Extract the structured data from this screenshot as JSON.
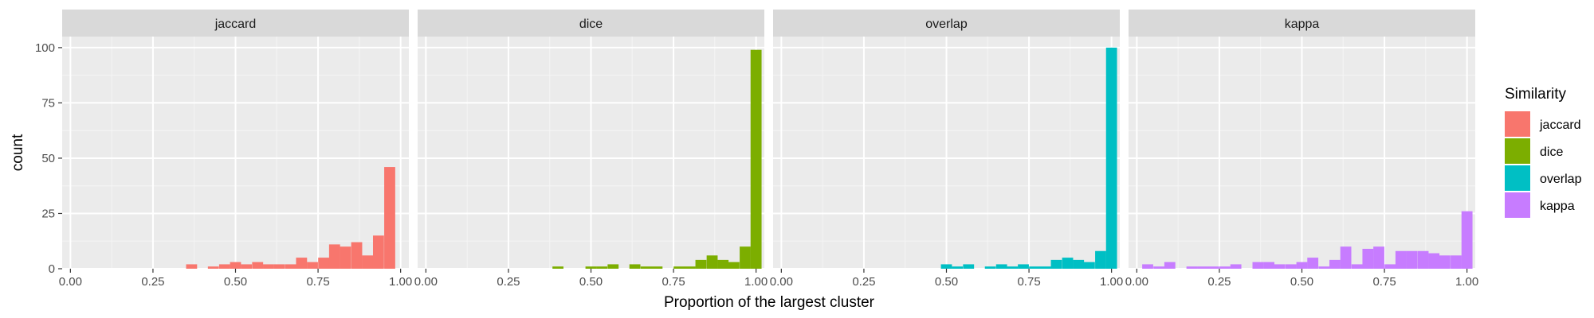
{
  "chart_data": {
    "type": "histogram",
    "xlabel": "Proportion of the largest cluster",
    "ylabel": "count",
    "xlim": [
      -0.025,
      1.025
    ],
    "ylim": [
      0,
      105
    ],
    "x_ticks": [
      "0.00",
      "0.25",
      "0.50",
      "0.75",
      "1.00"
    ],
    "y_ticks": [
      "0",
      "25",
      "50",
      "75",
      "100"
    ],
    "grid": true,
    "legend": {
      "title": "Similarity",
      "position": "right",
      "entries": [
        "jaccard",
        "dice",
        "overlap",
        "kappa"
      ]
    },
    "bin_width": 0.0333,
    "series": [
      {
        "name": "jaccard",
        "color": "#F8766D",
        "bins": [
          [
            0.367,
            2
          ],
          [
            0.433,
            1
          ],
          [
            0.467,
            2
          ],
          [
            0.5,
            3
          ],
          [
            0.533,
            2
          ],
          [
            0.567,
            3
          ],
          [
            0.6,
            2
          ],
          [
            0.633,
            2
          ],
          [
            0.667,
            2
          ],
          [
            0.7,
            5
          ],
          [
            0.733,
            3
          ],
          [
            0.767,
            5
          ],
          [
            0.8,
            11
          ],
          [
            0.833,
            10
          ],
          [
            0.867,
            12
          ],
          [
            0.9,
            6
          ],
          [
            0.933,
            15
          ],
          [
            0.967,
            46
          ]
        ]
      },
      {
        "name": "dice",
        "color": "#7CAE00",
        "bins": [
          [
            0.4,
            1
          ],
          [
            0.5,
            1
          ],
          [
            0.533,
            1
          ],
          [
            0.567,
            2
          ],
          [
            0.633,
            2
          ],
          [
            0.667,
            1
          ],
          [
            0.7,
            1
          ],
          [
            0.767,
            1
          ],
          [
            0.8,
            1
          ],
          [
            0.833,
            4
          ],
          [
            0.867,
            6
          ],
          [
            0.9,
            4
          ],
          [
            0.933,
            3
          ],
          [
            0.967,
            10
          ],
          [
            1.0,
            99
          ]
        ]
      },
      {
        "name": "overlap",
        "color": "#00BFC4",
        "bins": [
          [
            0.5,
            2
          ],
          [
            0.533,
            1
          ],
          [
            0.567,
            2
          ],
          [
            0.633,
            1
          ],
          [
            0.667,
            2
          ],
          [
            0.7,
            1
          ],
          [
            0.733,
            2
          ],
          [
            0.767,
            1
          ],
          [
            0.8,
            1
          ],
          [
            0.833,
            4
          ],
          [
            0.867,
            5
          ],
          [
            0.9,
            4
          ],
          [
            0.933,
            3
          ],
          [
            0.967,
            8
          ],
          [
            1.0,
            100
          ]
        ]
      },
      {
        "name": "kappa",
        "color": "#C77CFF",
        "bins": [
          [
            0.033,
            2
          ],
          [
            0.067,
            1
          ],
          [
            0.1,
            3
          ],
          [
            0.167,
            1
          ],
          [
            0.2,
            1
          ],
          [
            0.233,
            1
          ],
          [
            0.267,
            1
          ],
          [
            0.3,
            2
          ],
          [
            0.367,
            3
          ],
          [
            0.4,
            3
          ],
          [
            0.433,
            2
          ],
          [
            0.467,
            2
          ],
          [
            0.5,
            3
          ],
          [
            0.533,
            5
          ],
          [
            0.567,
            1
          ],
          [
            0.6,
            4
          ],
          [
            0.633,
            10
          ],
          [
            0.667,
            2
          ],
          [
            0.7,
            9
          ],
          [
            0.733,
            10
          ],
          [
            0.767,
            2
          ],
          [
            0.8,
            8
          ],
          [
            0.833,
            8
          ],
          [
            0.867,
            8
          ],
          [
            0.9,
            7
          ],
          [
            0.933,
            6
          ],
          [
            0.967,
            6
          ],
          [
            1.0,
            26
          ]
        ]
      }
    ]
  }
}
